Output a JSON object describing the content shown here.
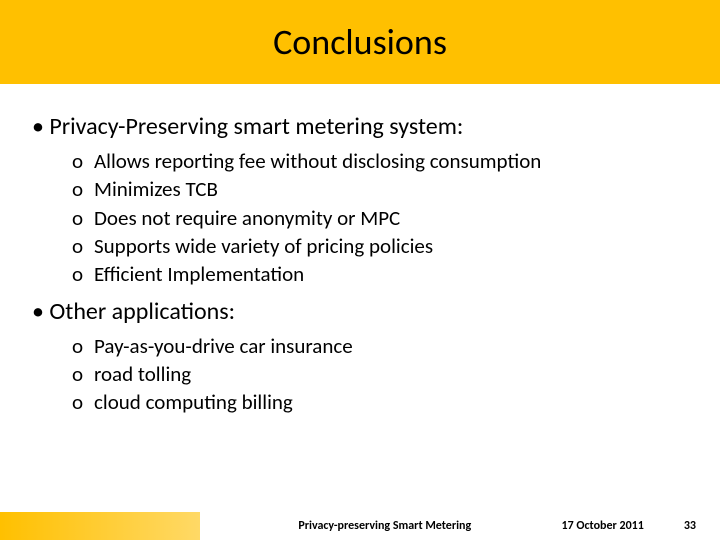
{
  "colors": {
    "title_bar_bg": "#ffc000",
    "slide_bg": "#ffffff",
    "text": "#000000",
    "footer_accent_start": "#ffc000",
    "footer_accent_end": "#ffd966"
  },
  "typography": {
    "title_fontsize": 36,
    "main_bullet_fontsize": 24,
    "sub_bullet_fontsize": 21,
    "footer_fontsize": 12,
    "footer_fontweight": 700,
    "font_family": "Calibri"
  },
  "title": "Conclusions",
  "bullets": [
    {
      "text": "Privacy-Preserving smart metering system:",
      "sub": [
        "Allows reporting fee without disclosing consumption",
        "Minimizes TCB",
        "Does not require anonymity or MPC",
        "Supports wide variety of pricing policies",
        "Efficient Implementation"
      ]
    },
    {
      "text": "Other applications:",
      "sub": [
        "Pay-as-you-drive car insurance",
        "road tolling",
        "cloud computing billing"
      ]
    }
  ],
  "footer": {
    "center": "Privacy-preserving Smart Metering",
    "date": "17 October 2011",
    "page": "33"
  },
  "markers": {
    "main": "•",
    "sub": "o"
  }
}
